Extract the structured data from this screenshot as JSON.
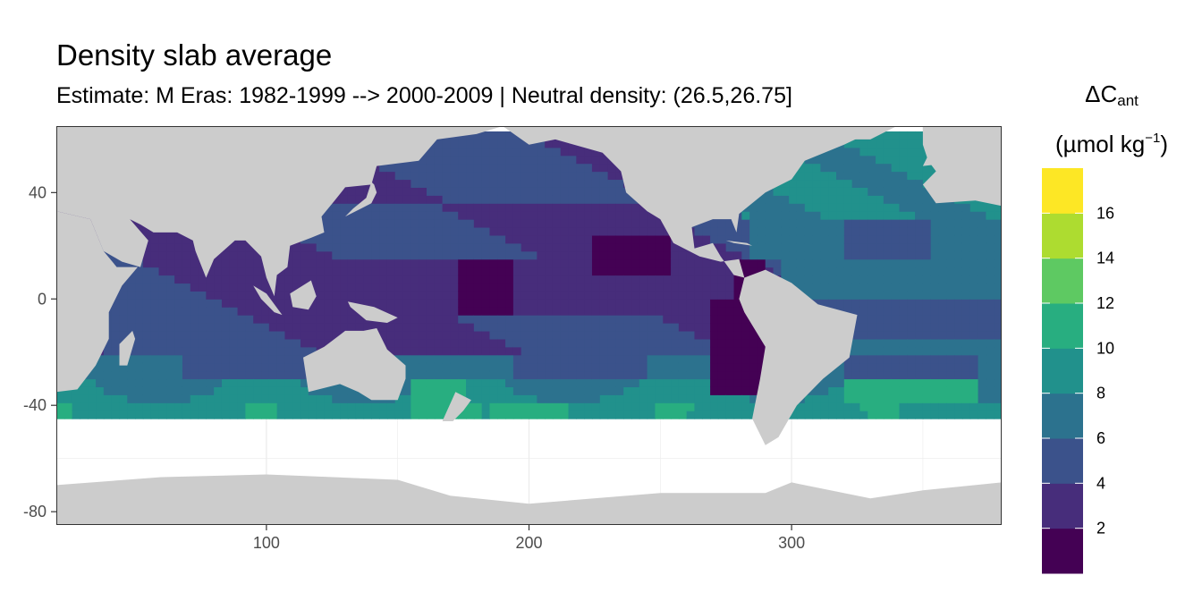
{
  "chart_data": {
    "type": "heatmap",
    "title": "Density slab average",
    "subtitle": "Estimate: M Eras: 1982-1999 --> 2000-2009 | Neutral density: (26.5,26.75]",
    "xlabel": "",
    "ylabel": "",
    "xlim": [
      20,
      380
    ],
    "ylim": [
      -85,
      65
    ],
    "x_ticks": [
      100,
      200,
      300
    ],
    "y_ticks": [
      40,
      0,
      -40,
      -80
    ],
    "grid": true,
    "legend": {
      "position": "right",
      "title_main": "ΔC",
      "title_sub": "ant",
      "title_unit_pre": "(µmol kg",
      "title_unit_sup": "−1",
      "title_unit_post": ")",
      "breaks": [
        0,
        2,
        4,
        6,
        8,
        10,
        12,
        14,
        16,
        18
      ],
      "labels": [
        "2",
        "4",
        "6",
        "8",
        "10",
        "12",
        "14",
        "16"
      ],
      "colors": [
        "#440154",
        "#472d7b",
        "#3b528b",
        "#2c728e",
        "#21918c",
        "#28ae80",
        "#5ec962",
        "#addc30",
        "#fde725"
      ]
    },
    "colors": {
      "land": "#cccccc",
      "no_data": "#ffffff",
      "grid": "#ebebeb",
      "panel_border": "#333333"
    }
  }
}
